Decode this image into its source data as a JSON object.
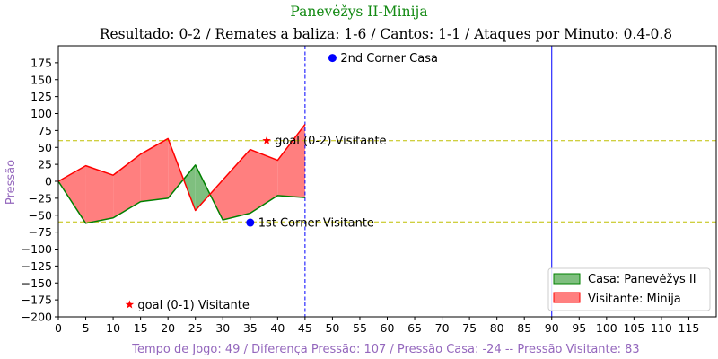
{
  "chart_data": {
    "type": "area",
    "title": "Panevėžys II-Minija",
    "subtitle": "Resultado: 0-2 / Remates a baliza: 1-6 / Cantos: 1-1 / Ataques por Minuto: 0.4-0.8",
    "xlabel": "Tempo de Jogo: 49 / Diferença Pressão: 107 / Pressão Casa: -24 -- Pressão Visitante: 83",
    "ylabel": "Pressão",
    "xlim": [
      0,
      120
    ],
    "ylim": [
      -200,
      200
    ],
    "x_ticks": [
      0,
      5,
      10,
      15,
      20,
      25,
      30,
      35,
      40,
      45,
      50,
      55,
      60,
      65,
      70,
      75,
      80,
      85,
      90,
      95,
      100,
      105,
      110,
      115
    ],
    "y_ticks": [
      -200,
      -175,
      -150,
      -125,
      -100,
      -75,
      -50,
      -25,
      0,
      25,
      50,
      75,
      100,
      125,
      150,
      175
    ],
    "series": [
      {
        "name": "Casa: Panevėžys II",
        "color": "#008000",
        "fill": "#7fbf7f",
        "x": [
          0,
          5,
          10,
          15,
          20,
          25,
          30,
          35,
          40,
          45
        ],
        "values": [
          0,
          -62,
          -54,
          -30,
          -25,
          24,
          -57,
          -47,
          -21,
          -24
        ]
      },
      {
        "name": "Visitante: Minija",
        "color": "#ff0000",
        "fill": "#ff7f7f",
        "x": [
          0,
          5,
          10,
          15,
          20,
          25,
          30,
          35,
          40,
          45
        ],
        "values": [
          0,
          23,
          9,
          40,
          63,
          -43,
          2,
          47,
          31,
          84
        ]
      }
    ],
    "hlines": [
      {
        "y": 60,
        "color": "#bfbf00",
        "style": "dashed"
      },
      {
        "y": -60,
        "color": "#bfbf00",
        "style": "dashed"
      }
    ],
    "vlines": [
      {
        "x": 45,
        "color": "#0000ff",
        "style": "dashed"
      },
      {
        "x": 90,
        "color": "#0000ff",
        "style": "solid"
      }
    ],
    "events": [
      {
        "x": 50,
        "y": 182,
        "marker": "dot",
        "color": "#0000ff",
        "label": "2nd Corner Casa"
      },
      {
        "x": 35,
        "y": -61,
        "marker": "dot",
        "color": "#0000ff",
        "label": "1st Corner Visitante"
      },
      {
        "x": 38,
        "y": 60,
        "marker": "star",
        "color": "#ff0000",
        "label": "goal (0-2) Visitante"
      },
      {
        "x": 13,
        "y": -182,
        "marker": "star",
        "color": "#ff0000",
        "label": "goal (0-1) Visitante"
      }
    ],
    "legend_position": "lower-right",
    "grid": false
  }
}
